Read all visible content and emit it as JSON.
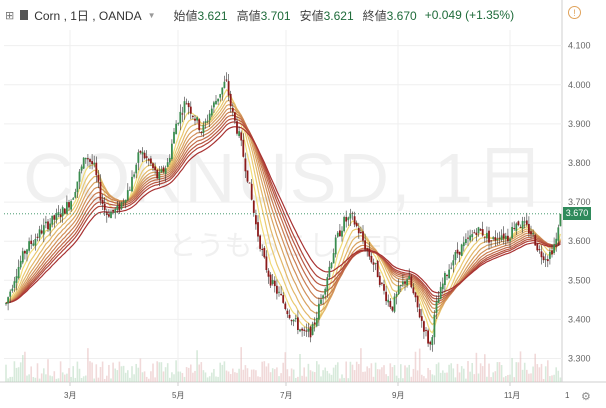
{
  "header": {
    "symbol": "Corn , 1日 , OANDA",
    "open_label": "始値",
    "open": "3.621",
    "high_label": "高値",
    "high": "3.701",
    "low_label": "安値",
    "low": "3.621",
    "close_label": "終値",
    "close": "3.670",
    "change": "+0.049 (+1.35%)"
  },
  "watermark": {
    "main": "CORNUSD, 1日",
    "sub": "とうもろこし CFD"
  },
  "last_price_label": "3.670",
  "colors": {
    "up": "#3a8d4f",
    "down": "#8b1a1a",
    "ribbon_fast": "#f2dc78",
    "ribbon_slow": "#a83232",
    "last_price_line": "#2f8a5b"
  },
  "chart_data": {
    "type": "candlestick",
    "y_axis": {
      "ticks": [
        "3.300",
        "3.400",
        "3.500",
        "3.600",
        "3.700",
        "3.800",
        "3.900",
        "4.000",
        "4.100"
      ],
      "range": [
        3.24,
        4.14
      ]
    },
    "x_axis": {
      "ticks": [
        "3月",
        "5月",
        "7月",
        "9月",
        "11月",
        "1"
      ]
    },
    "grid": true,
    "last_price": 3.67,
    "price_path": [
      {
        "x": 0,
        "y": 3.44
      },
      {
        "x": 10,
        "y": 3.52
      },
      {
        "x": 20,
        "y": 3.58
      },
      {
        "x": 30,
        "y": 3.61
      },
      {
        "x": 40,
        "y": 3.64
      },
      {
        "x": 50,
        "y": 3.66
      },
      {
        "x": 58,
        "y": 3.68
      },
      {
        "x": 66,
        "y": 3.71
      },
      {
        "x": 72,
        "y": 3.76
      },
      {
        "x": 80,
        "y": 3.82
      },
      {
        "x": 88,
        "y": 3.79
      },
      {
        "x": 94,
        "y": 3.72
      },
      {
        "x": 100,
        "y": 3.67
      },
      {
        "x": 112,
        "y": 3.68
      },
      {
        "x": 124,
        "y": 3.74
      },
      {
        "x": 134,
        "y": 3.83
      },
      {
        "x": 144,
        "y": 3.8
      },
      {
        "x": 152,
        "y": 3.76
      },
      {
        "x": 162,
        "y": 3.8
      },
      {
        "x": 170,
        "y": 3.9
      },
      {
        "x": 180,
        "y": 3.96
      },
      {
        "x": 188,
        "y": 3.92
      },
      {
        "x": 196,
        "y": 3.88
      },
      {
        "x": 204,
        "y": 3.93
      },
      {
        "x": 212,
        "y": 3.97
      },
      {
        "x": 220,
        "y": 4.01
      },
      {
        "x": 226,
        "y": 3.93
      },
      {
        "x": 234,
        "y": 3.86
      },
      {
        "x": 242,
        "y": 3.76
      },
      {
        "x": 250,
        "y": 3.64
      },
      {
        "x": 258,
        "y": 3.55
      },
      {
        "x": 266,
        "y": 3.49
      },
      {
        "x": 274,
        "y": 3.46
      },
      {
        "x": 282,
        "y": 3.42
      },
      {
        "x": 290,
        "y": 3.39
      },
      {
        "x": 298,
        "y": 3.36
      },
      {
        "x": 306,
        "y": 3.37
      },
      {
        "x": 314,
        "y": 3.44
      },
      {
        "x": 322,
        "y": 3.52
      },
      {
        "x": 330,
        "y": 3.6
      },
      {
        "x": 338,
        "y": 3.65
      },
      {
        "x": 346,
        "y": 3.66
      },
      {
        "x": 354,
        "y": 3.62
      },
      {
        "x": 362,
        "y": 3.57
      },
      {
        "x": 370,
        "y": 3.53
      },
      {
        "x": 378,
        "y": 3.47
      },
      {
        "x": 386,
        "y": 3.43
      },
      {
        "x": 394,
        "y": 3.48
      },
      {
        "x": 402,
        "y": 3.51
      },
      {
        "x": 410,
        "y": 3.44
      },
      {
        "x": 418,
        "y": 3.38
      },
      {
        "x": 424,
        "y": 3.33
      },
      {
        "x": 430,
        "y": 3.43
      },
      {
        "x": 438,
        "y": 3.5
      },
      {
        "x": 446,
        "y": 3.55
      },
      {
        "x": 454,
        "y": 3.58
      },
      {
        "x": 462,
        "y": 3.6
      },
      {
        "x": 470,
        "y": 3.63
      },
      {
        "x": 478,
        "y": 3.62
      },
      {
        "x": 486,
        "y": 3.6
      },
      {
        "x": 494,
        "y": 3.62
      },
      {
        "x": 502,
        "y": 3.61
      },
      {
        "x": 510,
        "y": 3.65
      },
      {
        "x": 518,
        "y": 3.64
      },
      {
        "x": 526,
        "y": 3.62
      },
      {
        "x": 534,
        "y": 3.57
      },
      {
        "x": 542,
        "y": 3.56
      },
      {
        "x": 550,
        "y": 3.6
      },
      {
        "x": 556,
        "y": 3.67
      }
    ]
  }
}
